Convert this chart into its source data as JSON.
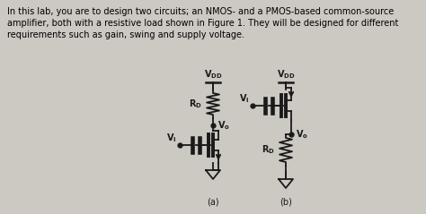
{
  "bg_color": "#ccc8c2",
  "text_color": "#000000",
  "title_text": "In this lab, you are to design two circuits; an NMOS- and a PMOS-based common-source\namplifier, both with a resistive load shown in Figure 1. They will be designed for different\nrequirements such as gain, swing and supply voltage.",
  "fig_width": 4.74,
  "fig_height": 2.39,
  "dpi": 100,
  "lw": 1.3,
  "color": "#1a1a1a",
  "fs_label": 7.0
}
